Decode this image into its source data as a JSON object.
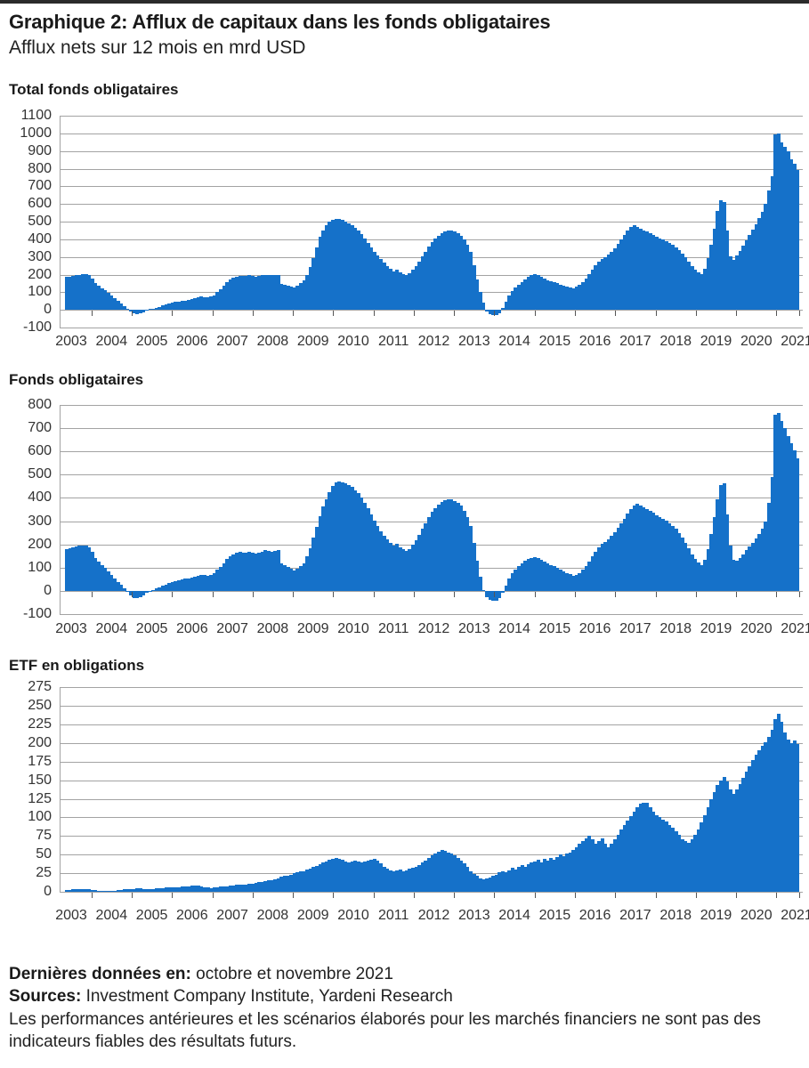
{
  "page": {
    "title": "Graphique 2: Afflux de capitaux dans les fonds obligataires",
    "subtitle": "Afflux nets sur 12 mois en mrd USD"
  },
  "colors": {
    "bar": "#1571C9",
    "grid": "#A3A3A3",
    "tick": "#555555",
    "text": "#1A1A1A",
    "top_rule": "#2B2B2B"
  },
  "chart_data": [
    {
      "type": "bar",
      "title": "Total fonds obligataires",
      "unit": "mrd USD",
      "frequency": "monthly",
      "x_start": "2002-11",
      "x_end": "2021-11",
      "x_tick_labels": [
        "2003",
        "2004",
        "2005",
        "2006",
        "2007",
        "2008",
        "2009",
        "2010",
        "2011",
        "2012",
        "2013",
        "2014",
        "2015",
        "2016",
        "2017",
        "2018",
        "2019",
        "2020",
        "2021"
      ],
      "ylim": [
        -100,
        1100
      ],
      "y_tick_step": 100,
      "grid": true,
      "values": [
        185,
        188,
        192,
        196,
        200,
        203,
        205,
        198,
        178,
        152,
        136,
        121,
        110,
        96,
        81,
        65,
        50,
        36,
        20,
        5,
        -10,
        -20,
        -25,
        -20,
        -14,
        -6,
        1,
        6,
        12,
        18,
        25,
        30,
        35,
        40,
        45,
        48,
        50,
        52,
        55,
        60,
        65,
        70,
        75,
        72,
        70,
        74,
        84,
        100,
        116,
        135,
        155,
        170,
        181,
        188,
        192,
        190,
        193,
        196,
        192,
        188,
        192,
        195,
        200,
        198,
        195,
        198,
        200,
        147,
        141,
        136,
        130,
        126,
        135,
        150,
        166,
        200,
        242,
        292,
        352,
        412,
        452,
        482,
        501,
        511,
        516,
        513,
        508,
        501,
        492,
        481,
        466,
        450,
        430,
        406,
        381,
        356,
        331,
        306,
        286,
        266,
        246,
        231,
        218,
        226,
        211,
        201,
        196,
        206,
        226,
        248,
        272,
        301,
        331,
        361,
        386,
        406,
        421,
        436,
        446,
        451,
        449,
        444,
        436,
        421,
        401,
        371,
        331,
        251,
        171,
        101,
        41,
        -9,
        -24,
        -29,
        -30,
        -21,
        9,
        46,
        81,
        106,
        126,
        141,
        156,
        171,
        186,
        196,
        201,
        196,
        186,
        176,
        169,
        162,
        156,
        150,
        144,
        137,
        131,
        126,
        124,
        131,
        141,
        156,
        176,
        201,
        226,
        251,
        271,
        286,
        296,
        311,
        331,
        351,
        376,
        401,
        426,
        451,
        471,
        481,
        471,
        459,
        451,
        443,
        436,
        426,
        416,
        406,
        398,
        391,
        381,
        369,
        356,
        341,
        321,
        296,
        271,
        246,
        226,
        211,
        201,
        231,
        291,
        371,
        461,
        561,
        621,
        611,
        451,
        301,
        281,
        306,
        336,
        366,
        396,
        426,
        456,
        486,
        521,
        556,
        601,
        676,
        756,
        996,
        1001,
        951,
        926,
        896,
        853,
        826,
        794
      ]
    },
    {
      "type": "bar",
      "title": "Fonds obligataires",
      "unit": "mrd USD",
      "frequency": "monthly",
      "x_start": "2002-11",
      "x_end": "2021-11",
      "x_tick_labels": [
        "2003",
        "2004",
        "2005",
        "2006",
        "2007",
        "2008",
        "2009",
        "2010",
        "2011",
        "2012",
        "2013",
        "2014",
        "2015",
        "2016",
        "2017",
        "2018",
        "2019",
        "2020",
        "2021"
      ],
      "ylim": [
        -100,
        800
      ],
      "y_tick_step": 100,
      "grid": true,
      "values": [
        180,
        183,
        186,
        190,
        193,
        195,
        195,
        188,
        168,
        142,
        126,
        111,
        99,
        85,
        70,
        54,
        39,
        25,
        10,
        -5,
        -20,
        -30,
        -33,
        -28,
        -20,
        -10,
        -2,
        4,
        10,
        16,
        22,
        28,
        33,
        38,
        42,
        46,
        49,
        52,
        55,
        58,
        62,
        66,
        70,
        67,
        64,
        67,
        76,
        90,
        104,
        120,
        138,
        150,
        158,
        163,
        167,
        164,
        166,
        170,
        166,
        162,
        166,
        170,
        174,
        171,
        168,
        171,
        174,
        120,
        112,
        104,
        96,
        88,
        95,
        105,
        118,
        148,
        185,
        228,
        275,
        322,
        362,
        395,
        425,
        450,
        465,
        470,
        467,
        462,
        455,
        446,
        434,
        419,
        400,
        378,
        354,
        329,
        303,
        278,
        257,
        238,
        222,
        208,
        196,
        202,
        188,
        178,
        172,
        180,
        198,
        218,
        240,
        266,
        292,
        317,
        339,
        357,
        371,
        383,
        391,
        395,
        393,
        388,
        380,
        366,
        346,
        317,
        278,
        205,
        130,
        62,
        5,
        -28,
        -38,
        -42,
        -42,
        -33,
        -8,
        24,
        53,
        75,
        92,
        105,
        117,
        128,
        137,
        143,
        146,
        142,
        134,
        126,
        119,
        112,
        105,
        98,
        91,
        84,
        77,
        71,
        66,
        70,
        78,
        90,
        106,
        126,
        148,
        170,
        188,
        202,
        212,
        223,
        237,
        252,
        270,
        290,
        311,
        332,
        352,
        367,
        375,
        369,
        361,
        353,
        345,
        336,
        327,
        318,
        310,
        302,
        292,
        280,
        266,
        250,
        230,
        206,
        182,
        158,
        138,
        122,
        112,
        132,
        180,
        245,
        318,
        395,
        455,
        462,
        330,
        195,
        135,
        128,
        140,
        158,
        175,
        192,
        208,
        225,
        245,
        268,
        300,
        380,
        490,
        756,
        766,
        731,
        701,
        666,
        636,
        606,
        571
      ]
    },
    {
      "type": "bar",
      "title": "ETF en obligations",
      "unit": "mrd USD",
      "frequency": "monthly",
      "x_start": "2002-11",
      "x_end": "2021-11",
      "x_tick_labels": [
        "2003",
        "2004",
        "2005",
        "2006",
        "2007",
        "2008",
        "2009",
        "2010",
        "2011",
        "2012",
        "2013",
        "2014",
        "2015",
        "2016",
        "2017",
        "2018",
        "2019",
        "2020",
        "2021"
      ],
      "ylim": [
        0,
        275
      ],
      "y_tick_step": 25,
      "grid": true,
      "values": [
        2,
        2,
        3,
        3,
        3,
        4,
        4,
        3,
        2,
        2,
        1,
        1,
        1,
        1,
        1,
        1,
        2,
        2,
        3,
        3,
        4,
        4,
        5,
        5,
        4,
        4,
        4,
        4,
        5,
        5,
        5,
        6,
        6,
        6,
        6,
        6,
        7,
        7,
        7,
        8,
        8,
        8,
        7,
        6,
        6,
        5,
        6,
        6,
        7,
        7,
        7,
        8,
        8,
        9,
        9,
        10,
        10,
        11,
        11,
        12,
        13,
        13,
        14,
        15,
        16,
        17,
        18,
        20,
        21,
        22,
        23,
        25,
        26,
        27,
        28,
        30,
        31,
        33,
        35,
        37,
        39,
        41,
        43,
        44,
        45,
        44,
        43,
        41,
        40,
        41,
        42,
        41,
        40,
        41,
        42,
        43,
        44,
        42,
        38,
        34,
        31,
        29,
        28,
        29,
        30,
        28,
        29,
        31,
        32,
        34,
        36,
        39,
        42,
        46,
        49,
        52,
        54,
        56,
        55,
        53,
        51,
        49,
        46,
        42,
        38,
        33,
        28,
        24,
        21,
        18,
        17,
        18,
        19,
        21,
        23,
        26,
        28,
        26,
        29,
        32,
        30,
        33,
        36,
        34,
        37,
        39,
        41,
        43,
        40,
        44,
        42,
        45,
        43,
        47,
        50,
        48,
        51,
        53,
        56,
        60,
        64,
        68,
        72,
        75,
        70,
        65,
        68,
        72,
        65,
        60,
        64,
        70,
        77,
        84,
        90,
        96,
        102,
        108,
        113,
        118,
        120,
        119,
        114,
        108,
        103,
        100,
        97,
        94,
        90,
        86,
        81,
        76,
        71,
        68,
        66,
        70,
        76,
        84,
        93,
        103,
        113,
        124,
        134,
        143,
        150,
        154,
        148,
        138,
        131,
        137,
        145,
        153,
        161,
        169,
        177,
        184,
        190,
        196,
        201,
        208,
        218,
        232,
        239,
        228,
        214,
        205,
        200,
        203,
        199
      ]
    }
  ],
  "footer": {
    "last_data_label": "Dernières données en:",
    "last_data_value": " octobre et novembre 2021",
    "sources_label": "Sources:",
    "sources_value": " Investment Company Institute, Yardeni Research",
    "disclaimer": "Les performances antérieures et les scénarios élaborés pour les marchés financiers ne sont pas des indicateurs fiables des résultats futurs."
  }
}
